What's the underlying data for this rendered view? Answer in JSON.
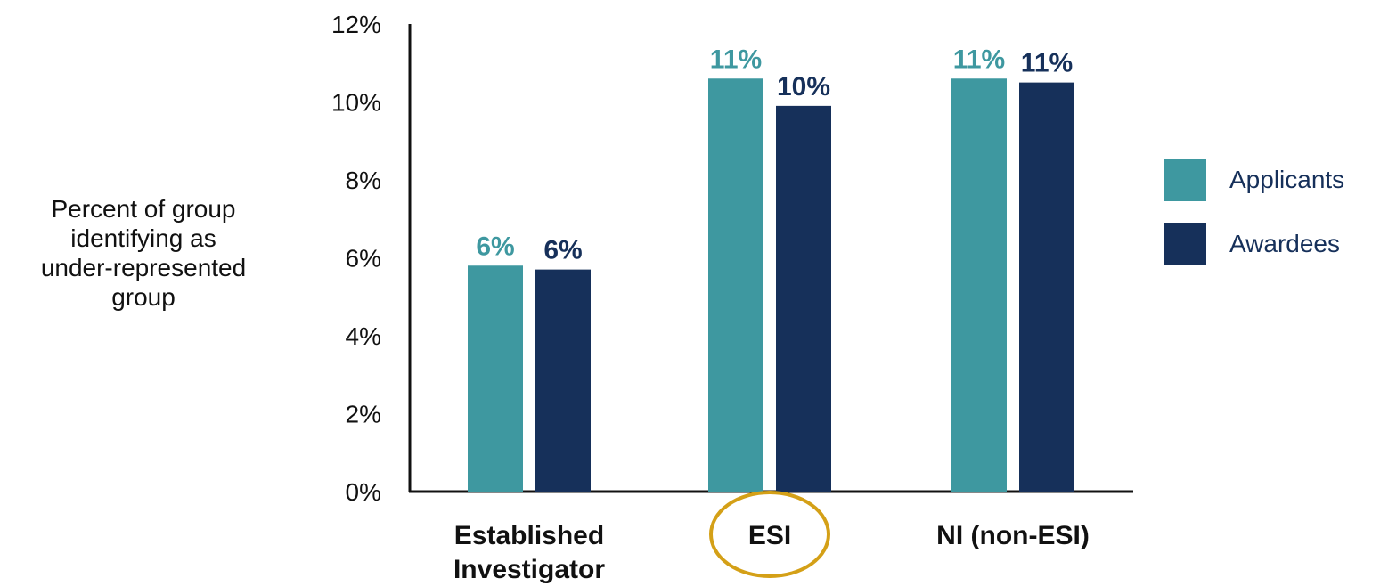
{
  "chart_data": {
    "type": "bar",
    "title": "",
    "ylabel": "Percent of group\nidentifying as\nunder-represented\ngroup",
    "xlabel": "",
    "categories": [
      "Established\nInvestigator",
      "ESI",
      "NI (non-ESI)"
    ],
    "highlighted_category": "ESI",
    "ylim": [
      0,
      12
    ],
    "yticks": [
      "0%",
      "2%",
      "4%",
      "6%",
      "8%",
      "10%",
      "12%"
    ],
    "grid": false,
    "legend_position": "right",
    "series": [
      {
        "name": "Applicants",
        "color": "#3e98a0",
        "values": [
          5.8,
          10.6,
          10.6
        ],
        "labels": [
          "6%",
          "11%",
          "11%"
        ]
      },
      {
        "name": "Awardees",
        "color": "#16305a",
        "values": [
          5.7,
          9.9,
          10.5
        ],
        "labels": [
          "6%",
          "10%",
          "11%"
        ]
      }
    ],
    "highlight_color": "#d4a017"
  }
}
